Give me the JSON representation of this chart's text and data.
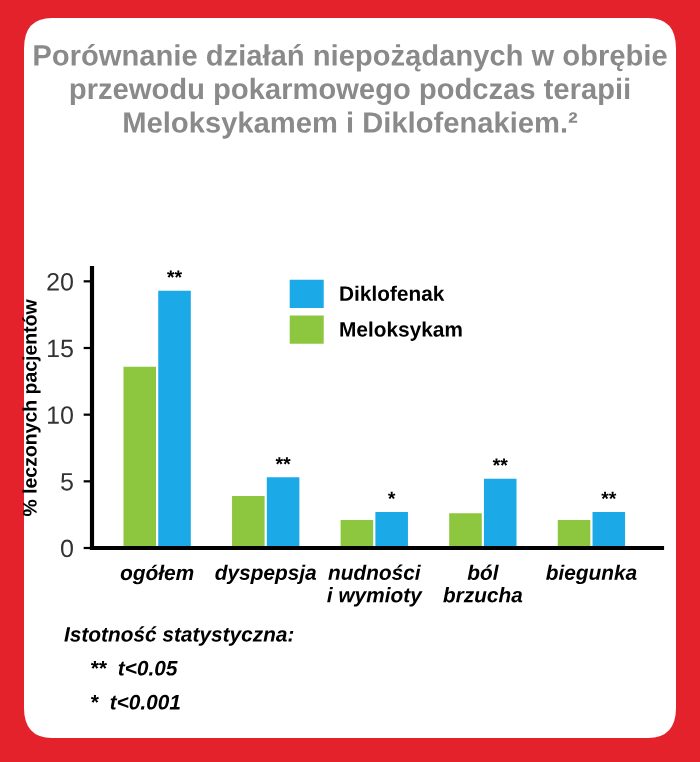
{
  "chart_data": {
    "type": "bar",
    "title": "Porównanie działań niepożądanych w obrębie\nprzewodu pokarmowego podczas terapii\nMeloksykamem i Diklofenakiem.²",
    "ylabel": "% leczonych pacjentów",
    "categories": [
      "ogółem",
      "dyspepsja",
      "nudności\ni wymioty",
      "ból\nbrzucha",
      "biegunka"
    ],
    "series": [
      {
        "name": "Meloksykam",
        "color": "#8dc63f",
        "values": [
          13.6,
          3.9,
          2.1,
          2.6,
          2.1
        ]
      },
      {
        "name": "Diklofenak",
        "color": "#1ba9e8",
        "values": [
          19.3,
          5.3,
          2.7,
          5.2,
          2.7
        ]
      }
    ],
    "ylim": [
      0,
      21
    ],
    "yticks": [
      0,
      5,
      10,
      15,
      20
    ],
    "grid": false,
    "legend": "top",
    "annotations": [
      {
        "text": "**",
        "x": "ogółem",
        "y": 19.3
      },
      {
        "text": "**",
        "x": "dyspepsja",
        "y": 5.3
      },
      {
        "text": "*",
        "x": "nudności\ni wymioty",
        "y": 2.7
      },
      {
        "text": "**",
        "x": "ból\nbrzucha",
        "y": 5.2
      },
      {
        "text": "**",
        "x": "biegunka",
        "y": 2.7
      },
      "Istotność statystyczna:",
      "**  t<0.05",
      "*  t<0.001"
    ]
  }
}
